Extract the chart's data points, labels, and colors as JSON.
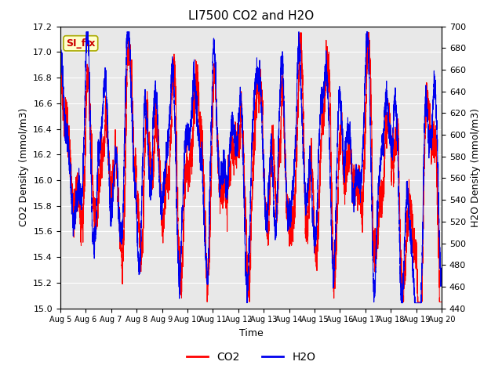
{
  "title": "LI7500 CO2 and H2O",
  "xlabel": "Time",
  "ylabel_left": "CO2 Density (mmol/m3)",
  "ylabel_right": "H2O Density (mmol/m3)",
  "co2_ylim": [
    15.0,
    17.2
  ],
  "h2o_ylim": [
    440,
    700
  ],
  "co2_color": "#FF0000",
  "h2o_color": "#0000EE",
  "bg_color": "#FFFFFF",
  "plot_bg_color": "#E8E8E8",
  "grid_color": "#FFFFFF",
  "legend_label_co2": "CO2",
  "legend_label_h2o": "H2O",
  "annotation_text": "SI_flx",
  "annotation_bg": "#FFFFCC",
  "annotation_border": "#AAAA00",
  "x_tick_labels": [
    "Aug 5",
    "Aug 6",
    "Aug 7",
    "Aug 8",
    "Aug 9",
    "Aug 10",
    "Aug 11",
    "Aug 12",
    "Aug 13",
    "Aug 14",
    "Aug 15",
    "Aug 16",
    "Aug 17",
    "Aug 18",
    "Aug 19",
    "Aug 20"
  ],
  "n_points": 7200,
  "seed": 7
}
